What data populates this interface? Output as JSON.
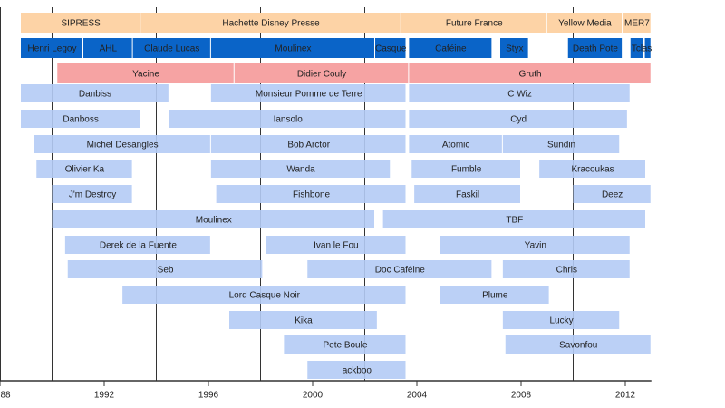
{
  "chart_data": {
    "type": "timeline",
    "xlim": [
      1988,
      2013
    ],
    "xticks": [
      {
        "value": 1988,
        "label": "88"
      },
      1992,
      1996,
      2000,
      2004,
      2008,
      2012
    ],
    "gridlines": [
      1990,
      1994,
      1998,
      2002,
      2006,
      2010
    ],
    "rows": [
      {
        "color": "#fdd3a6",
        "bars": [
          {
            "label": "SIPRESS",
            "start": 1988.8,
            "end": 1993.4
          },
          {
            "label": "Hachette Disney Presse",
            "start": 1993.4,
            "end": 2003.4
          },
          {
            "label": "Future France",
            "start": 2003.4,
            "end": 2009.0
          },
          {
            "label": "Yellow Media",
            "start": 2009.0,
            "end": 2011.9
          },
          {
            "label": "MER7",
            "start": 2011.9,
            "end": 2013.0
          }
        ]
      },
      {
        "color": "#0a64c8",
        "bars": [
          {
            "label": "Henri Legoy",
            "start": 1988.8,
            "end": 1991.2
          },
          {
            "label": "AHL",
            "start": 1991.2,
            "end": 1993.1
          },
          {
            "label": "Claude Lucas",
            "start": 1993.1,
            "end": 1996.1
          },
          {
            "label": "Moulinex",
            "start": 1996.1,
            "end": 2002.4
          },
          {
            "label": "Casque",
            "start": 2002.4,
            "end": 2003.6
          },
          {
            "label": "Caféine",
            "start": 2003.7,
            "end": 2006.9
          },
          {
            "label": "Styx",
            "start": 2007.2,
            "end": 2008.3
          },
          {
            "label": "Death Pote",
            "start": 2009.8,
            "end": 2011.9
          },
          {
            "label": "Tcl",
            "start": 2012.2,
            "end": 2012.7
          },
          {
            "label": "asi",
            "start": 2012.75,
            "end": 2013.0
          }
        ]
      },
      {
        "color": "#f6a3a3",
        "bars": [
          {
            "label": "Yacine",
            "start": 1990.2,
            "end": 1997.0
          },
          {
            "label": "Didier Couly",
            "start": 1997.0,
            "end": 2003.7
          },
          {
            "label": "Gruth",
            "start": 2003.7,
            "end": 2013.0
          }
        ]
      },
      {
        "color": "#b4cbf5",
        "bars": [
          {
            "label": "Danbiss",
            "start": 1988.8,
            "end": 1994.5
          },
          {
            "label": "Monsieur Pomme de Terre",
            "start": 1996.1,
            "end": 2003.6
          },
          {
            "label": "C Wiz",
            "start": 2003.7,
            "end": 2012.2
          }
        ]
      },
      {
        "color": "#b4cbf5",
        "bars": [
          {
            "label": "Danboss",
            "start": 1988.8,
            "end": 1993.4
          },
          {
            "label": "Iansolo",
            "start": 1994.5,
            "end": 2003.6
          },
          {
            "label": "Cyd",
            "start": 2003.7,
            "end": 2012.1
          }
        ]
      },
      {
        "color": "#b4cbf5",
        "bars": [
          {
            "label": "Michel Desangles",
            "start": 1989.3,
            "end": 1996.1
          },
          {
            "label": "Bob Arctor",
            "start": 1996.1,
            "end": 2003.6
          },
          {
            "label": "Atomic",
            "start": 2003.7,
            "end": 2007.3
          },
          {
            "label": "Sundin",
            "start": 2007.3,
            "end": 2011.8
          }
        ]
      },
      {
        "color": "#b4cbf5",
        "bars": [
          {
            "label": "Olivier Ka",
            "start": 1989.4,
            "end": 1993.1
          },
          {
            "label": "Wanda",
            "start": 1996.1,
            "end": 2003.0
          },
          {
            "label": "Fumble",
            "start": 2003.8,
            "end": 2008.0
          },
          {
            "label": "Kracoukas",
            "start": 2008.7,
            "end": 2012.8
          }
        ]
      },
      {
        "color": "#b4cbf5",
        "bars": [
          {
            "label": "J'm Destroy",
            "start": 1990.0,
            "end": 1993.1
          },
          {
            "label": "Fishbone",
            "start": 1996.3,
            "end": 2003.6
          },
          {
            "label": "Faskil",
            "start": 2003.9,
            "end": 2008.0
          },
          {
            "label": "Deez",
            "start": 2010.0,
            "end": 2013.0
          }
        ]
      },
      {
        "color": "#b4cbf5",
        "bars": [
          {
            "label": "Moulinex",
            "start": 1990.0,
            "end": 2002.4
          },
          {
            "label": "TBF",
            "start": 2002.7,
            "end": 2012.8
          }
        ]
      },
      {
        "color": "#b4cbf5",
        "bars": [
          {
            "label": "Derek de la Fuente",
            "start": 1990.5,
            "end": 1996.1
          },
          {
            "label": "Ivan le Fou",
            "start": 1998.2,
            "end": 2003.6
          },
          {
            "label": "Yavin",
            "start": 2004.9,
            "end": 2012.2
          }
        ]
      },
      {
        "color": "#b4cbf5",
        "bars": [
          {
            "label": "Seb",
            "start": 1990.6,
            "end": 1998.1
          },
          {
            "label": "Doc Caféine",
            "start": 1999.8,
            "end": 2006.9
          },
          {
            "label": "Chris",
            "start": 2007.3,
            "end": 2012.2
          }
        ]
      },
      {
        "color": "#b4cbf5",
        "bars": [
          {
            "label": "Lord Casque Noir",
            "start": 1992.7,
            "end": 2003.6
          },
          {
            "label": "Plume",
            "start": 2004.9,
            "end": 2009.1
          }
        ]
      },
      {
        "color": "#b4cbf5",
        "bars": [
          {
            "label": "Kika",
            "start": 1996.8,
            "end": 2002.5
          },
          {
            "label": "Lucky",
            "start": 2007.3,
            "end": 2011.8
          }
        ]
      },
      {
        "color": "#b4cbf5",
        "bars": [
          {
            "label": "Pete Boule",
            "start": 1998.9,
            "end": 2003.6
          },
          {
            "label": "Savonfou",
            "start": 2007.4,
            "end": 2013.0
          }
        ]
      },
      {
        "color": "#b4cbf5",
        "bars": [
          {
            "label": "ackboo",
            "start": 1999.8,
            "end": 2003.6
          }
        ]
      }
    ]
  }
}
